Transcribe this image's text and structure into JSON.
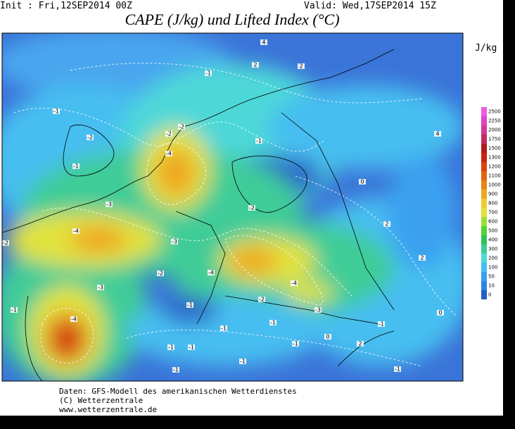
{
  "header": {
    "init": "Init : Fri,12SEP2014 00Z",
    "valid": "Valid: Wed,17SEP2014 15Z",
    "title": "CAPE (J/kg) und Lifted Index (°C)"
  },
  "colorbar": {
    "unit": "J/kg",
    "levels": [
      0,
      10,
      50,
      100,
      200,
      300,
      400,
      500,
      600,
      700,
      800,
      900,
      1000,
      1100,
      1200,
      1300,
      1500,
      1750,
      2000,
      2250,
      2500
    ],
    "colors": [
      "#2060c8",
      "#2c84e4",
      "#3aa0f0",
      "#46bef0",
      "#4ed8d8",
      "#40cc98",
      "#30c25a",
      "#56d034",
      "#9ede3a",
      "#e2e23e",
      "#f0cc2a",
      "#eea820",
      "#e88418",
      "#e06412",
      "#d84410",
      "#c82610",
      "#b01a1a",
      "#c02a5e",
      "#d03a94",
      "#e044c4",
      "#f05ae2"
    ]
  },
  "map": {
    "contour_labels": [
      "-1",
      "-2",
      "-1",
      "-2",
      "-2",
      "-4",
      "-3",
      "-4",
      "-3",
      "-2",
      "-4",
      "-3",
      "-4",
      "-3",
      "-2",
      "-1",
      "-1",
      "2",
      "4",
      "2",
      "0",
      "2",
      "2",
      "0",
      "4",
      "-1",
      "-1",
      "-1",
      "-1",
      "-4",
      "-1",
      "-1",
      "-1",
      "0",
      "-1",
      "2",
      "-1",
      "-1",
      "-2",
      "-1",
      "-2"
    ]
  },
  "footer": {
    "lines": [
      "Daten: GFS-Modell des amerikanischen Wetterdienstes",
      "(C) Wetterzentrale",
      "www.wetterzentrale.de"
    ]
  }
}
